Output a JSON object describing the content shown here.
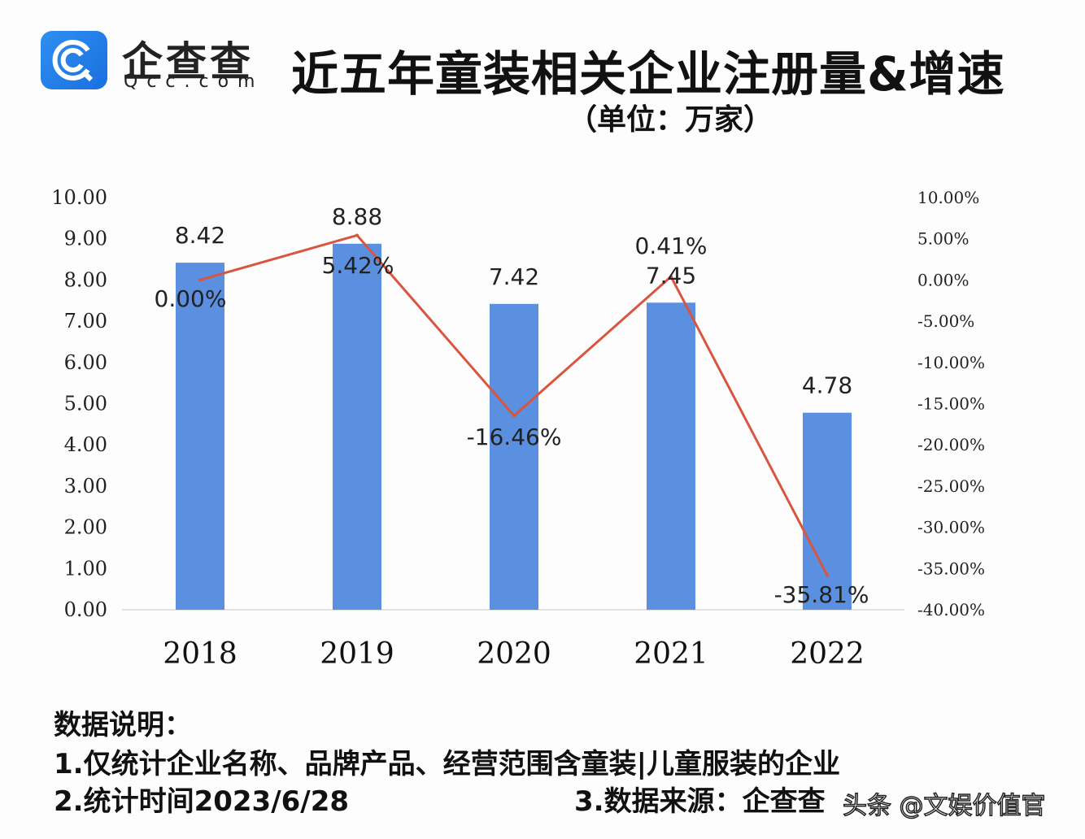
{
  "logo": {
    "name_cn": "企查查",
    "name_en": "Qcc.com"
  },
  "chart_data": {
    "type": "bar+line",
    "title": "近五年童装相关企业注册量&增速",
    "subtitle": "（单位：万家）",
    "categories": [
      "2018",
      "2019",
      "2020",
      "2021",
      "2022"
    ],
    "series": [
      {
        "type": "bar",
        "axis": "left",
        "values": [
          8.42,
          8.88,
          7.42,
          7.45,
          4.78
        ],
        "labels": [
          "8.42",
          "8.88",
          "7.42",
          "7.45",
          "4.78"
        ],
        "color": "#5b8fe0"
      },
      {
        "type": "line",
        "axis": "right",
        "values": [
          0.0,
          5.42,
          -16.46,
          0.41,
          -35.81
        ],
        "labels": [
          "0.00%",
          "5.42%",
          "-16.46%",
          "0.41%",
          "-35.81%"
        ],
        "color": "#d9553f"
      }
    ],
    "left_axis": {
      "ylim": [
        0,
        10
      ],
      "ticks": [
        "0.00",
        "1.00",
        "2.00",
        "3.00",
        "4.00",
        "5.00",
        "6.00",
        "7.00",
        "8.00",
        "9.00",
        "10.00"
      ]
    },
    "right_axis": {
      "ylim": [
        -40,
        10
      ],
      "ticks": [
        "-40.00%",
        "-35.00%",
        "-30.00%",
        "-25.00%",
        "-20.00%",
        "-15.00%",
        "-10.00%",
        "-5.00%",
        "0.00%",
        "5.00%",
        "10.00%"
      ]
    },
    "grid": false,
    "legend": "none"
  },
  "notes": {
    "heading": "数据说明：",
    "line1": "1.仅统计企业名称、品牌产品、经营范围含童装|儿童服装的企业",
    "line2": "2.统计时间2023/6/28",
    "line3": "3.数据来源：企查查"
  },
  "watermark": "头条 @文娱价值官"
}
